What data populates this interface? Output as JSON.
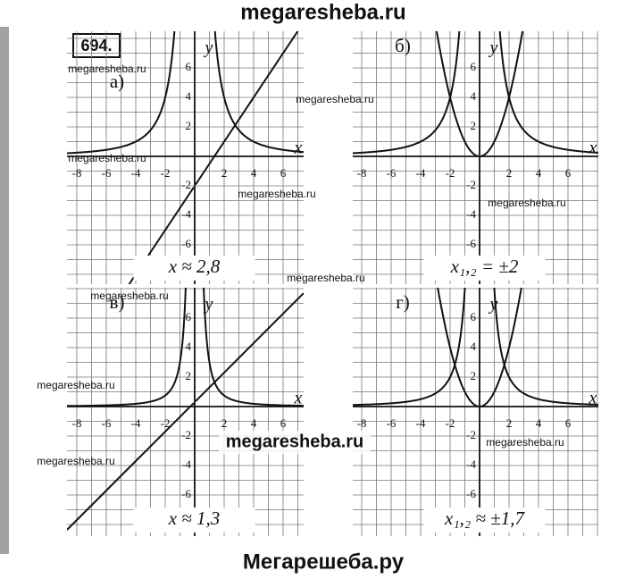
{
  "header": "megaresheba.ru",
  "problem_number": "694.",
  "grid": {
    "x_labels": [
      "-8",
      "-6",
      "-4",
      "-2",
      "2",
      "4",
      "6"
    ],
    "y_labels": [
      "6",
      "4",
      "2",
      "-2",
      "-4",
      "-6"
    ],
    "x_axis": "x",
    "y_axis": "y"
  },
  "panels": [
    {
      "label": "а)",
      "answer": "x ≈ 2,8"
    },
    {
      "label": "б)",
      "answer": "x₁,₂ = ±2"
    },
    {
      "label": "в)",
      "answer": "x ≈ 1,3"
    },
    {
      "label": "г)",
      "answer": "x₁,₂ ≈ ±1,7"
    }
  ],
  "watermarks": [
    "megaresheba.ru",
    "megaresheba.ru",
    "megaresheba.ru",
    "megaresheba.ru",
    "megaresheba.ru",
    "megaresheba.ru",
    "megaresheba.ru",
    "megaresheba.ru",
    "megaresheba.ru",
    "megaresheba.ru"
  ],
  "center_watermark": "megaresheba.ru",
  "footer": "Мегарешеба.ру"
}
